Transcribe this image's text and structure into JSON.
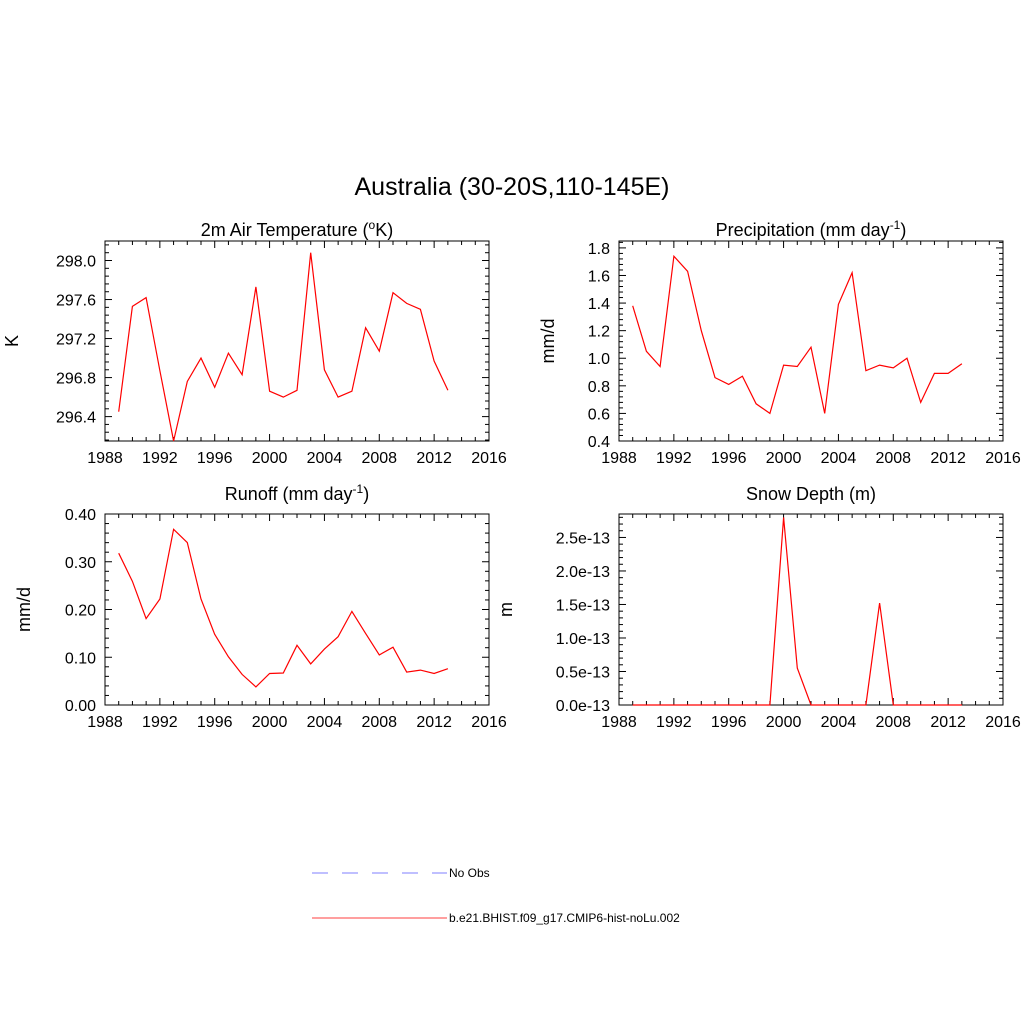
{
  "figure": {
    "title": "Australia (30-20S,110-145E)"
  },
  "legend": {
    "items": [
      {
        "label": "No Obs",
        "color": "#9999ff",
        "style": "dashed"
      },
      {
        "label": "b.e21.BHIST.f09_g17.CMIP6-hist-noLu.002",
        "color": "#ff6666",
        "style": "solid"
      }
    ]
  },
  "series_color": "#ff0000",
  "chart_data": [
    {
      "type": "line",
      "title_main": "2m Air Temperature (",
      "title_sup": "o",
      "title_end": "K)",
      "ylabel": "K",
      "xlim": [
        1988,
        2016
      ],
      "ylim": [
        296.15,
        298.2
      ],
      "xticks": [
        1988,
        1992,
        1996,
        2000,
        2004,
        2008,
        2012,
        2016
      ],
      "xtick_labels": [
        "1988",
        "1992",
        "1996",
        "2000",
        "2004",
        "2008",
        "2012",
        "2016"
      ],
      "yticks": [
        296.4,
        296.8,
        297.2,
        297.6,
        298.0
      ],
      "ytick_labels": [
        "296.4",
        "296.8",
        "297.2",
        "297.6",
        "298.0"
      ],
      "grid": false,
      "series": [
        {
          "x": [
            1989,
            1990,
            1991,
            1992,
            1993,
            1994,
            1995,
            1996,
            1997,
            1998,
            1999,
            2000,
            2001,
            2002,
            2003,
            2004,
            2005,
            2006,
            2007,
            2008,
            2009,
            2010,
            2011,
            2012,
            2013
          ],
          "y": [
            296.45,
            297.53,
            297.62,
            296.87,
            296.15,
            296.76,
            297.0,
            296.7,
            297.05,
            296.83,
            297.73,
            296.66,
            296.6,
            296.67,
            298.08,
            296.88,
            296.6,
            296.66,
            297.31,
            297.07,
            297.67,
            297.56,
            297.5,
            296.97,
            296.67
          ]
        }
      ]
    },
    {
      "type": "line",
      "title_main": "Precipitation (mm day",
      "title_sup": "-1",
      "title_end": ")",
      "ylabel": "mm/d",
      "xlim": [
        1988,
        2016
      ],
      "ylim": [
        0.4,
        1.85
      ],
      "xticks": [
        1988,
        1992,
        1996,
        2000,
        2004,
        2008,
        2012,
        2016
      ],
      "xtick_labels": [
        "1988",
        "1992",
        "1996",
        "2000",
        "2004",
        "2008",
        "2012",
        "2016"
      ],
      "yticks": [
        0.4,
        0.6,
        0.8,
        1.0,
        1.2,
        1.4,
        1.6,
        1.8
      ],
      "ytick_labels": [
        "0.4",
        "0.6",
        "0.8",
        "1.0",
        "1.2",
        "1.4",
        "1.6",
        "1.8"
      ],
      "grid": false,
      "series": [
        {
          "x": [
            1989,
            1990,
            1991,
            1992,
            1993,
            1994,
            1995,
            1996,
            1997,
            1998,
            1999,
            2000,
            2001,
            2002,
            2003,
            2004,
            2005,
            2006,
            2007,
            2008,
            2009,
            2010,
            2011,
            2012,
            2013
          ],
          "y": [
            1.38,
            1.05,
            0.94,
            1.74,
            1.63,
            1.2,
            0.86,
            0.81,
            0.87,
            0.67,
            0.6,
            0.95,
            0.94,
            1.08,
            0.6,
            1.39,
            1.62,
            0.91,
            0.95,
            0.93,
            1.0,
            0.68,
            0.89,
            0.89,
            0.96
          ]
        }
      ]
    },
    {
      "type": "line",
      "title_main": "Runoff (mm day",
      "title_sup": "-1",
      "title_end": ")",
      "ylabel": "mm/d",
      "xlim": [
        1988,
        2016
      ],
      "ylim": [
        0.0,
        0.4
      ],
      "xticks": [
        1988,
        1992,
        1996,
        2000,
        2004,
        2008,
        2012,
        2016
      ],
      "xtick_labels": [
        "1988",
        "1992",
        "1996",
        "2000",
        "2004",
        "2008",
        "2012",
        "2016"
      ],
      "yticks": [
        0.0,
        0.1,
        0.2,
        0.3,
        0.4
      ],
      "ytick_labels": [
        "0.00",
        "0.10",
        "0.20",
        "0.30",
        "0.40"
      ],
      "grid": false,
      "series": [
        {
          "x": [
            1989,
            1990,
            1991,
            1992,
            1993,
            1994,
            1995,
            1996,
            1997,
            1998,
            1999,
            2000,
            2001,
            2002,
            2003,
            2004,
            2005,
            2006,
            2007,
            2008,
            2009,
            2010,
            2011,
            2012,
            2013
          ],
          "y": [
            0.318,
            0.259,
            0.181,
            0.222,
            0.368,
            0.34,
            0.222,
            0.148,
            0.101,
            0.064,
            0.038,
            0.066,
            0.067,
            0.125,
            0.086,
            0.117,
            0.143,
            0.196,
            0.15,
            0.105,
            0.121,
            0.069,
            0.073,
            0.066,
            0.076
          ]
        }
      ]
    },
    {
      "type": "line",
      "title_main": "Snow Depth (m)",
      "title_sup": "",
      "title_end": "",
      "ylabel": "m",
      "xlim": [
        1988,
        2016
      ],
      "ylim": [
        0,
        2.85e-13
      ],
      "xticks": [
        1988,
        1992,
        1996,
        2000,
        2004,
        2008,
        2012,
        2016
      ],
      "xtick_labels": [
        "1988",
        "1992",
        "1996",
        "2000",
        "2004",
        "2008",
        "2012",
        "2016"
      ],
      "yticks": [
        0,
        5e-14,
        1e-13,
        1.5e-13,
        2e-13,
        2.5e-13
      ],
      "ytick_labels": [
        "0.0e-13",
        "0.5e-13",
        "1.0e-13",
        "1.5e-13",
        "2.0e-13",
        "2.5e-13"
      ],
      "grid": false,
      "series": [
        {
          "x": [
            1989,
            1990,
            1991,
            1992,
            1993,
            1994,
            1995,
            1996,
            1997,
            1998,
            1999,
            2000,
            2001,
            2002,
            2003,
            2004,
            2005,
            2006,
            2007,
            2008,
            2009,
            2010,
            2011,
            2012,
            2013
          ],
          "y": [
            0,
            0,
            0,
            0,
            0,
            0,
            0,
            0,
            0,
            0,
            0,
            2.8e-13,
            5.5e-14,
            0,
            0,
            0,
            0,
            0,
            1.52e-13,
            0,
            0,
            0,
            0,
            0,
            0
          ]
        }
      ]
    }
  ]
}
